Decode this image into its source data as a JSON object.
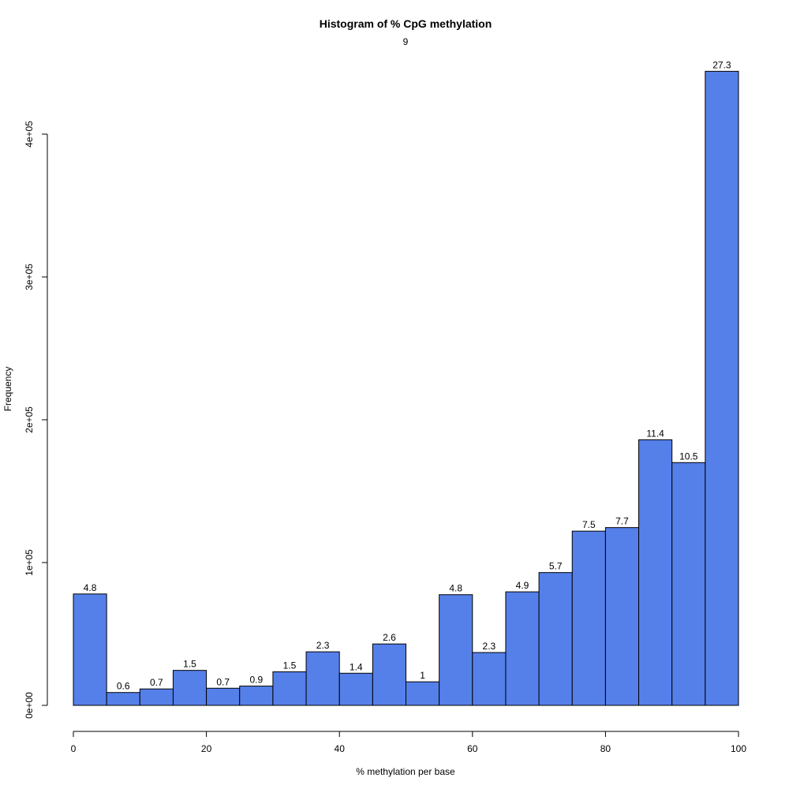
{
  "chart_data": {
    "type": "bar",
    "title": "Histogram of % CpG methylation",
    "subtitle": "9",
    "xlabel": "% methylation per base",
    "ylabel": "Frequency",
    "bar_color": "#5580EA",
    "bins": [
      [
        0,
        5
      ],
      [
        5,
        10
      ],
      [
        10,
        15
      ],
      [
        15,
        20
      ],
      [
        20,
        25
      ],
      [
        25,
        30
      ],
      [
        30,
        35
      ],
      [
        35,
        40
      ],
      [
        40,
        45
      ],
      [
        45,
        50
      ],
      [
        50,
        55
      ],
      [
        55,
        60
      ],
      [
        60,
        65
      ],
      [
        65,
        70
      ],
      [
        70,
        75
      ],
      [
        75,
        80
      ],
      [
        80,
        85
      ],
      [
        85,
        90
      ],
      [
        90,
        95
      ],
      [
        95,
        100
      ]
    ],
    "values": [
      78000,
      9000,
      11500,
      24500,
      12000,
      13500,
      23500,
      37500,
      22500,
      43000,
      16500,
      77500,
      37000,
      79500,
      93000,
      122000,
      124500,
      186000,
      170000,
      444000
    ],
    "bar_labels": [
      "4.8",
      "0.6",
      "0.7",
      "1.5",
      "0.7",
      "0.9",
      "1.5",
      "2.3",
      "1.4",
      "2.6",
      "1",
      "4.8",
      "2.3",
      "4.9",
      "5.7",
      "7.5",
      "7.7",
      "11.4",
      "10.5",
      "27.3"
    ],
    "xlim": [
      0,
      100
    ],
    "ylim": [
      0,
      400000
    ],
    "xticks": [
      0,
      20,
      40,
      60,
      80,
      100
    ],
    "xtick_labels": [
      "0",
      "20",
      "40",
      "60",
      "80",
      "100"
    ],
    "yticks": [
      0,
      100000,
      200000,
      300000,
      400000
    ],
    "ytick_labels": [
      "0e+00",
      "1e+05",
      "2e+05",
      "3e+05",
      "4e+05"
    ],
    "grid": false,
    "legend": "none"
  }
}
